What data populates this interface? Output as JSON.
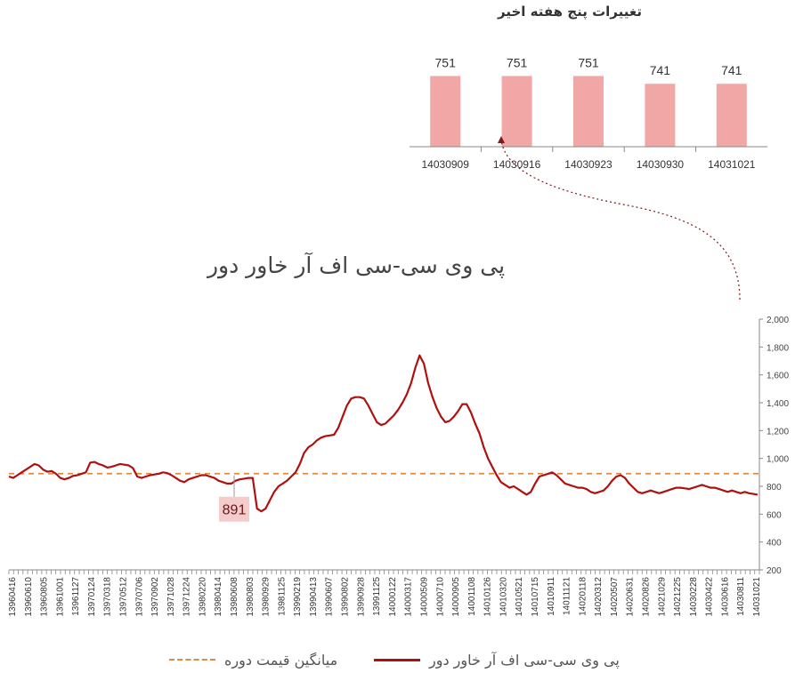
{
  "top_chart": {
    "title": "تغییرات پنج هفته اخیر",
    "color": "#f2a7a7"
  },
  "main_chart": {
    "title": "پی وی سی-سی اف آر خاور دور",
    "line_color": "#b01010",
    "avg_color": "#e08a3c"
  },
  "legend": {
    "series_label": "پی وی سی-سی اف آر خاور دور",
    "avg_label": "میانگین قیمت دوره"
  },
  "chart_data": [
    {
      "type": "bar",
      "title": "تغییرات پنج هفته اخیر",
      "categories": [
        "14030909",
        "14030916",
        "14030923",
        "14030930",
        "14031021"
      ],
      "values": [
        751,
        751,
        751,
        741,
        741
      ],
      "data_labels": [
        "751",
        "751",
        "751",
        "741",
        "741"
      ]
    },
    {
      "type": "line",
      "title": "پی وی سی-سی اف آر خاور دور",
      "x_tick_labels": [
        "13960416",
        "13960610",
        "13960805",
        "13961001",
        "13961127",
        "13970124",
        "13970318",
        "13970512",
        "13970706",
        "13970902",
        "13971028",
        "13971224",
        "13980220",
        "13980414",
        "13980608",
        "13980803",
        "13980929",
        "13981125",
        "13990219",
        "13990413",
        "13990607",
        "13990802",
        "13990928",
        "13991125",
        "14000122",
        "14000317",
        "14000509",
        "14000710",
        "14000905",
        "14001108",
        "14010126",
        "14010320",
        "14010521",
        "14010715",
        "14010911",
        "14011121",
        "14020118",
        "14020312",
        "14020507",
        "14020631",
        "14020826",
        "14021029",
        "14021225",
        "14030228",
        "14030422",
        "14030616",
        "14030811",
        "14031021"
      ],
      "ylim": [
        200,
        2000
      ],
      "y_ticks": [
        200,
        400,
        600,
        800,
        1000,
        1200,
        1400,
        1600,
        1800,
        2000
      ],
      "y_tick_labels": [
        "200",
        "400",
        "600",
        "800",
        "1,000",
        "1,200",
        "1,400",
        "1,600",
        "1,800",
        "2,000"
      ],
      "average": 891,
      "average_label": "891",
      "series": [
        {
          "name": "پی وی سی-سی اف آر خاور دور",
          "values": [
            870,
            860,
            880,
            900,
            920,
            940,
            960,
            950,
            920,
            905,
            910,
            890,
            860,
            850,
            860,
            875,
            880,
            890,
            900,
            970,
            975,
            960,
            950,
            935,
            940,
            950,
            960,
            955,
            950,
            930,
            870,
            860,
            870,
            880,
            885,
            890,
            900,
            895,
            880,
            860,
            840,
            830,
            850,
            860,
            870,
            880,
            880,
            870,
            860,
            840,
            830,
            820,
            820,
            840,
            850,
            855,
            860,
            860,
            640,
            620,
            640,
            700,
            760,
            800,
            820,
            840,
            870,
            900,
            960,
            1040,
            1080,
            1100,
            1130,
            1150,
            1160,
            1165,
            1170,
            1220,
            1300,
            1380,
            1430,
            1440,
            1440,
            1430,
            1380,
            1320,
            1260,
            1240,
            1250,
            1280,
            1310,
            1350,
            1400,
            1460,
            1540,
            1650,
            1740,
            1680,
            1540,
            1440,
            1360,
            1300,
            1260,
            1270,
            1300,
            1340,
            1390,
            1390,
            1330,
            1250,
            1180,
            1080,
            1000,
            940,
            880,
            830,
            810,
            790,
            800,
            780,
            760,
            740,
            760,
            820,
            870,
            880,
            890,
            900,
            880,
            850,
            820,
            810,
            800,
            790,
            790,
            780,
            760,
            750,
            760,
            770,
            800,
            840,
            870,
            880,
            860,
            820,
            790,
            760,
            750,
            760,
            770,
            760,
            750,
            760,
            770,
            780,
            790,
            790,
            785,
            780,
            790,
            800,
            810,
            800,
            790,
            790,
            780,
            770,
            760,
            770,
            760,
            750,
            760,
            750,
            745,
            740
          ]
        }
      ]
    }
  ]
}
